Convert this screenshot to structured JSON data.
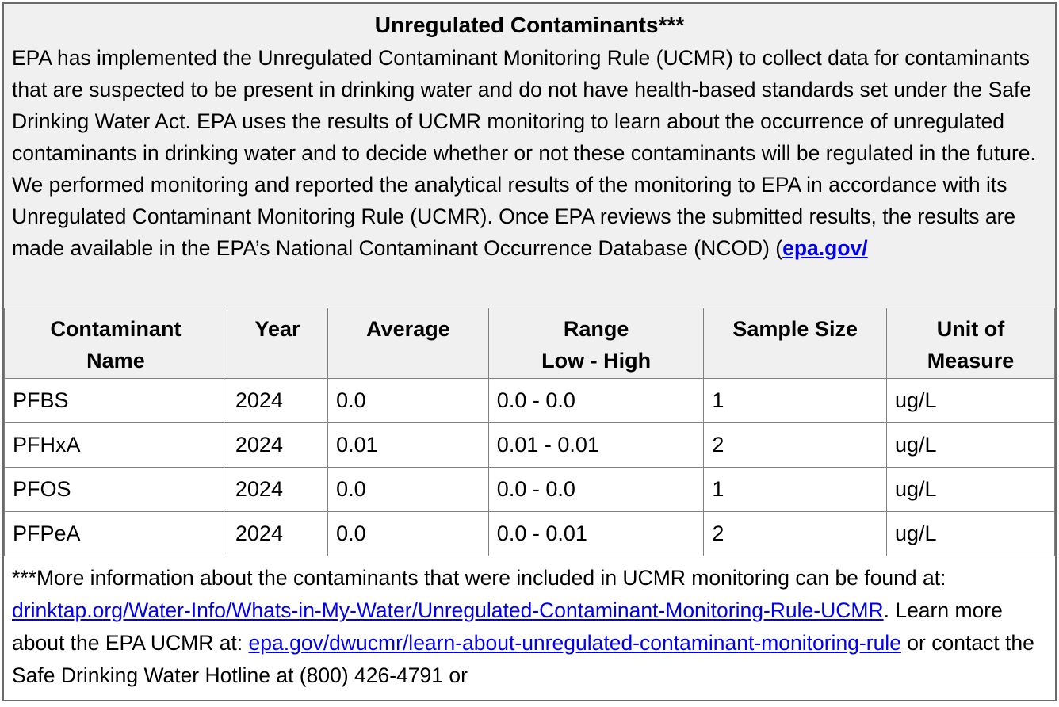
{
  "colors": {
    "section_bg": "#f0f0f0",
    "row_bg": "#ffffff",
    "text": "#000000",
    "link": "#0000ee",
    "inner_border": "#808080",
    "outer_border": "#6b6b6b"
  },
  "intro": {
    "title": "Unregulated Contaminants***",
    "body": "EPA has implemented the Unregulated Contaminant Monitoring Rule (UCMR) to collect data for contaminants that are suspected to be present in drinking water and do not have health-based standards set under the Safe Drinking Water Act. EPA uses the results of UCMR monitoring to learn about the occurrence of unregulated contaminants in drinking water and to decide whether or not these contaminants will be regulated in the future. We performed monitoring and reported the analytical results of the monitoring to EPA in accordance with its Unregulated Contaminant Monitoring Rule (UCMR). Once EPA reviews the submitted results, the results are made available in the EPA’s National Contaminant Occurrence Database (NCOD) (",
    "link": "epa.gov/"
  },
  "table": {
    "columns": [
      "Contaminant\nName",
      "Year",
      "Average",
      "Range\nLow - High",
      "Sample Size",
      "Unit of\nMeasure"
    ],
    "rows": [
      [
        "PFBS",
        "2024",
        "0.0",
        "0.0 - 0.0",
        "1",
        "ug/L"
      ],
      [
        "PFHxA",
        "2024",
        "0.01",
        "0.01 - 0.01",
        "2",
        "ug/L"
      ],
      [
        "PFOS",
        "2024",
        "0.0",
        "0.0 - 0.0",
        "1",
        "ug/L"
      ],
      [
        "PFPeA",
        "2024",
        "0.0",
        "0.0 - 0.01",
        "2",
        "ug/L"
      ]
    ]
  },
  "footnote": {
    "segments": [
      {
        "text": "***More information about the contaminants that were included in UCMR monitoring can be found at: ",
        "link": false
      },
      {
        "text": "drinktap.org/Water-Info/Whats-in-My-Water/Unregulated-Contaminant-Monitoring-Rule-UCMR",
        "link": true
      },
      {
        "text": ". Learn more about the EPA UCMR at: ",
        "link": false
      },
      {
        "text": "epa.gov/dwucmr/learn-about-unregulated-contaminant-monitoring-rule",
        "link": true
      },
      {
        "text": " or contact the Safe Drinking Water Hotline at (800) 426-4791 or",
        "link": false
      }
    ]
  }
}
